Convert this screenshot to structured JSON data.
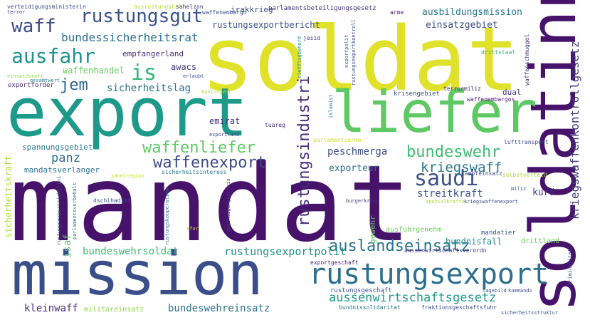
{
  "words": [
    {
      "text": "mandat",
      "color": "#46126a"
    },
    {
      "text": "soldat",
      "color": "#e0e22a"
    },
    {
      "text": "export",
      "color": "#1e9a8a"
    },
    {
      "text": "mission",
      "color": "#3a4f8a"
    },
    {
      "text": "soldatinn",
      "color": "#46126a"
    },
    {
      "text": "liefer",
      "color": "#5dc864"
    },
    {
      "text": "rustungsexport",
      "color": "#2c6e8e"
    },
    {
      "text": "rustungsgut",
      "color": "#3b528b"
    },
    {
      "text": "waff",
      "color": "#3e4a89"
    },
    {
      "text": "ausfahr",
      "color": "#21918c"
    },
    {
      "text": "is",
      "color": "#35b779"
    },
    {
      "text": "jem",
      "color": "#31688e"
    },
    {
      "text": "saudi",
      "color": "#3b528b"
    },
    {
      "text": "waffenexport",
      "color": "#3e4a89"
    },
    {
      "text": "waffenliefer",
      "color": "#5ec962"
    },
    {
      "text": "bundeswehr",
      "color": "#3fbc73"
    },
    {
      "text": "auslandseinsatz",
      "color": "#2c728e"
    },
    {
      "text": "aussenwirtschaftsgesetz",
      "color": "#1f9e89"
    },
    {
      "text": "kriegswaff",
      "color": "#2a788e"
    },
    {
      "text": "rustungsindustri",
      "color": "#472d7b"
    },
    {
      "text": "kriegswaffenkontrollgesetz",
      "color": "#443983"
    },
    {
      "text": "bundessicherheitsrat",
      "color": "#2c718e"
    },
    {
      "text": "rustungsexportbericht",
      "color": "#3b528b"
    },
    {
      "text": "ausbildungsmission",
      "color": "#2a788e"
    },
    {
      "text": "einsatzgebiet",
      "color": "#3d4d8a"
    },
    {
      "text": "empfangerland",
      "color": "#472d7b"
    },
    {
      "text": "awacs",
      "color": "#443a83"
    },
    {
      "text": "waffenhandel",
      "color": "#63cb5f"
    },
    {
      "text": "sicherheitslag",
      "color": "#2d708e"
    },
    {
      "text": "panz",
      "color": "#2f6b8e"
    },
    {
      "text": "irakkrieg",
      "color": "#3e4989"
    },
    {
      "text": "rustungsexportpolit",
      "color": "#21918c"
    },
    {
      "text": "bundeswehrsoldat",
      "color": "#3dbc74"
    },
    {
      "text": "kleinwaff",
      "color": "#46337e"
    },
    {
      "text": "bundeswehreinsatz",
      "color": "#2c728e"
    },
    {
      "text": "streitkraft",
      "color": "#3b528b"
    },
    {
      "text": "peschmerga",
      "color": "#3e4a89"
    },
    {
      "text": "exporteur",
      "color": "#2e6e8e"
    },
    {
      "text": "emirat",
      "color": "#46307e"
    },
    {
      "text": "isaf",
      "color": "#5ec962"
    },
    {
      "text": "spannungsgebiet",
      "color": "#2a788e"
    },
    {
      "text": "mandatsverlanger",
      "color": "#2c728e"
    },
    {
      "text": "kurd",
      "color": "#46337e"
    },
    {
      "text": "bundnisfall",
      "color": "#21918c"
    },
    {
      "text": "ausfuhrgenehm",
      "color": "#6ccd5a"
    },
    {
      "text": "militareinsatz",
      "color": "#8fd744"
    },
    {
      "text": "sicherheitskraft",
      "color": "#addc30"
    },
    {
      "text": "gewehr",
      "color": "#5ec962"
    },
    {
      "text": "drittland",
      "color": "#6ccd5a"
    },
    {
      "text": "dual",
      "color": "#46337e"
    },
    {
      "text": "mandatier",
      "color": "#3b528b"
    },
    {
      "text": "krisengebiet",
      "color": "#3e4a89"
    },
    {
      "text": "exportforder",
      "color": "#472d7b"
    },
    {
      "text": "exportgeschaft",
      "color": "#481f70"
    },
    {
      "text": "rustungsgeschaft",
      "color": "#3b528b"
    },
    {
      "text": "aussenwirtschaftsverordn",
      "color": "#46337e"
    },
    {
      "text": "verteidigungsministerin",
      "color": "#3e4989"
    },
    {
      "text": "ausrustungshilf",
      "color": "#b5de2b"
    },
    {
      "text": "sahelzon",
      "color": "#46337e"
    },
    {
      "text": "waffenembargo",
      "color": "#3b528b"
    },
    {
      "text": "parlamentsbeteiligungsgesetz",
      "color": "#46327e"
    },
    {
      "text": "arme",
      "color": "#481b6d"
    },
    {
      "text": "terror",
      "color": "#46337e"
    },
    {
      "text": "gesamtwert",
      "color": "#2a788e"
    },
    {
      "text": "einsatzkraft",
      "color": "#95d840"
    },
    {
      "text": "jesid",
      "color": "#46337e"
    },
    {
      "text": "drittstaat",
      "color": "#35b779"
    },
    {
      "text": "waffenschmuggel",
      "color": "#46337e"
    },
    {
      "text": "erlaubt",
      "color": "#3b528b"
    },
    {
      "text": "kontingent",
      "color": "#addc30"
    },
    {
      "text": "terrormiliz",
      "color": "#481f70"
    },
    {
      "text": "waffenembargos",
      "color": "#481b6d"
    },
    {
      "text": "islamist",
      "color": "#2a788e"
    },
    {
      "text": "parlamentsarme",
      "color": "#c8e020"
    },
    {
      "text": "tuareg",
      "color": "#46337e"
    },
    {
      "text": "exportland",
      "color": "#3e4a89"
    },
    {
      "text": "lufttransport",
      "color": "#3e4a89"
    },
    {
      "text": "selbstverteid",
      "color": "#addc30"
    },
    {
      "text": "kampfeinsatz",
      "color": "#3e4989"
    },
    {
      "text": "miliz",
      "color": "#3b528b"
    },
    {
      "text": "spezialkrafte",
      "color": "#addc30"
    },
    {
      "text": "kriegswaffenexport",
      "color": "#3e4a89"
    },
    {
      "text": "sicherheitsinteress",
      "color": "#2a788e"
    },
    {
      "text": "sahelregion",
      "color": "#c8e020"
    },
    {
      "text": "genehmigungspraxis",
      "color": "#46337e"
    },
    {
      "text": "burgerkrieg",
      "color": "#46337e"
    },
    {
      "text": "dschihadist",
      "color": "#3b528b"
    },
    {
      "text": "parlamentsvorbehalt",
      "color": "#2a788e"
    },
    {
      "text": "rustungsexportrichtlini",
      "color": "#3e4a89"
    },
    {
      "text": "rustungskooperation",
      "color": "#2a788e"
    },
    {
      "text": "kfor",
      "color": "#c8e020"
    },
    {
      "text": "exportpolit",
      "color": "#2c728e"
    },
    {
      "text": "rustungsexportkontroll",
      "color": "#3e4a89"
    },
    {
      "text": "tiefflugbehord",
      "color": "#21918c"
    },
    {
      "text": "lagebild",
      "color": "#3b528b"
    },
    {
      "text": "kommando",
      "color": "#3e4a89"
    },
    {
      "text": "kriminalitat",
      "color": "#3e4989"
    },
    {
      "text": "bundnissolidaritat",
      "color": "#2a788e"
    },
    {
      "text": "fraktionsgeschaftsfuhr",
      "color": "#3e4a89"
    },
    {
      "text": "sicherheitsstruktur",
      "color": "#3b528b"
    }
  ]
}
